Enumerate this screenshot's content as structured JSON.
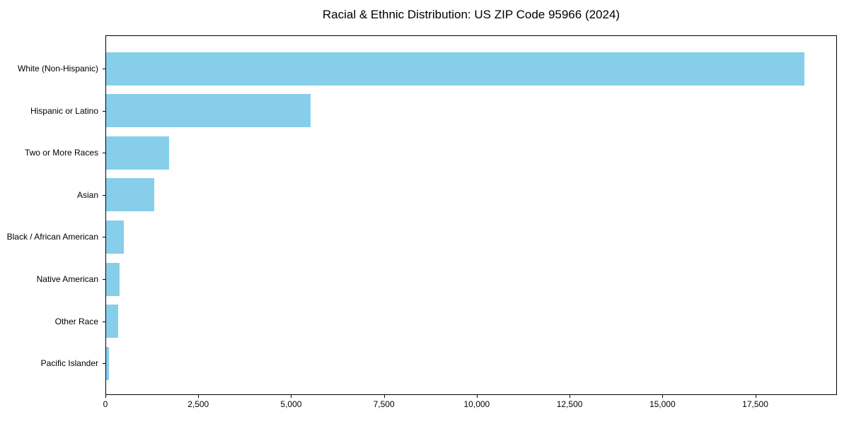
{
  "figure": {
    "background": "#ffffff"
  },
  "chart_data": {
    "type": "bar",
    "orientation": "horizontal",
    "title": "Racial & Ethnic Distribution: US ZIP Code 95966 (2024)",
    "categories": [
      "White (Non-Hispanic)",
      "Hispanic or Latino",
      "Two or More Races",
      "Asian",
      "Black / African American",
      "Native American",
      "Other Race",
      "Pacific Islander"
    ],
    "values": [
      18800,
      5500,
      1690,
      1300,
      480,
      370,
      330,
      70
    ],
    "xlabel": "",
    "ylabel": "",
    "xlim": [
      0,
      19700
    ],
    "x_ticks": [
      0,
      2500,
      5000,
      7500,
      10000,
      12500,
      15000,
      17500
    ],
    "x_tick_labels": [
      "0",
      "2,500",
      "5,000",
      "7,500",
      "10,000",
      "12,500",
      "15,000",
      "17,500"
    ],
    "bar_color": "#87CEEB",
    "axis_color": "#000000",
    "text_color": "#000000",
    "grid": false,
    "legend_position": "none"
  }
}
